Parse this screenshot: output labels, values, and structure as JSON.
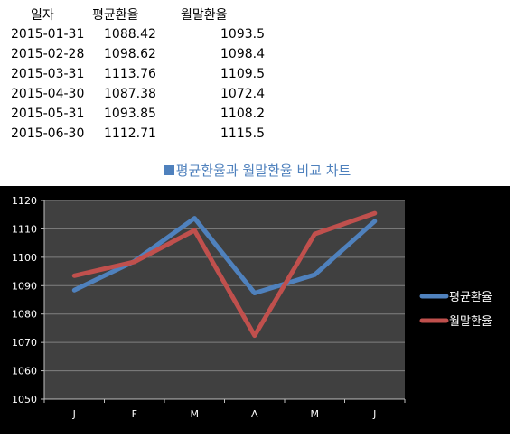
{
  "table": {
    "headers": [
      "일자",
      "평균환율",
      "월말환율"
    ],
    "rows": [
      [
        "2015-01-31",
        "1088.42",
        "1093.5"
      ],
      [
        "2015-02-28",
        "1098.62",
        "1098.4"
      ],
      [
        "2015-03-31",
        "1113.76",
        "1109.5"
      ],
      [
        "2015-04-30",
        "1087.38",
        "1072.4"
      ],
      [
        "2015-05-31",
        "1093.85",
        "1108.2"
      ],
      [
        "2015-06-30",
        "1112.71",
        "1115.5"
      ]
    ]
  },
  "chart_data": {
    "type": "line",
    "title": "평균환율과 월말환율 비교 차트",
    "categories": [
      "J",
      "F",
      "M",
      "A",
      "M",
      "J"
    ],
    "series": [
      {
        "name": "평균환율",
        "color": "#4F81BD",
        "values": [
          1088.42,
          1098.62,
          1113.76,
          1087.38,
          1093.85,
          1112.71
        ]
      },
      {
        "name": "월말환율",
        "color": "#C0504D",
        "values": [
          1093.5,
          1098.4,
          1109.5,
          1072.4,
          1108.2,
          1115.5
        ]
      }
    ],
    "ylim": [
      1050,
      1120
    ],
    "yticks": [
      1050,
      1060,
      1070,
      1080,
      1090,
      1100,
      1110,
      1120
    ],
    "grid": true,
    "legend": "right",
    "background": "#000000",
    "plot_background": "#404040",
    "gridline_color": "#808080"
  }
}
